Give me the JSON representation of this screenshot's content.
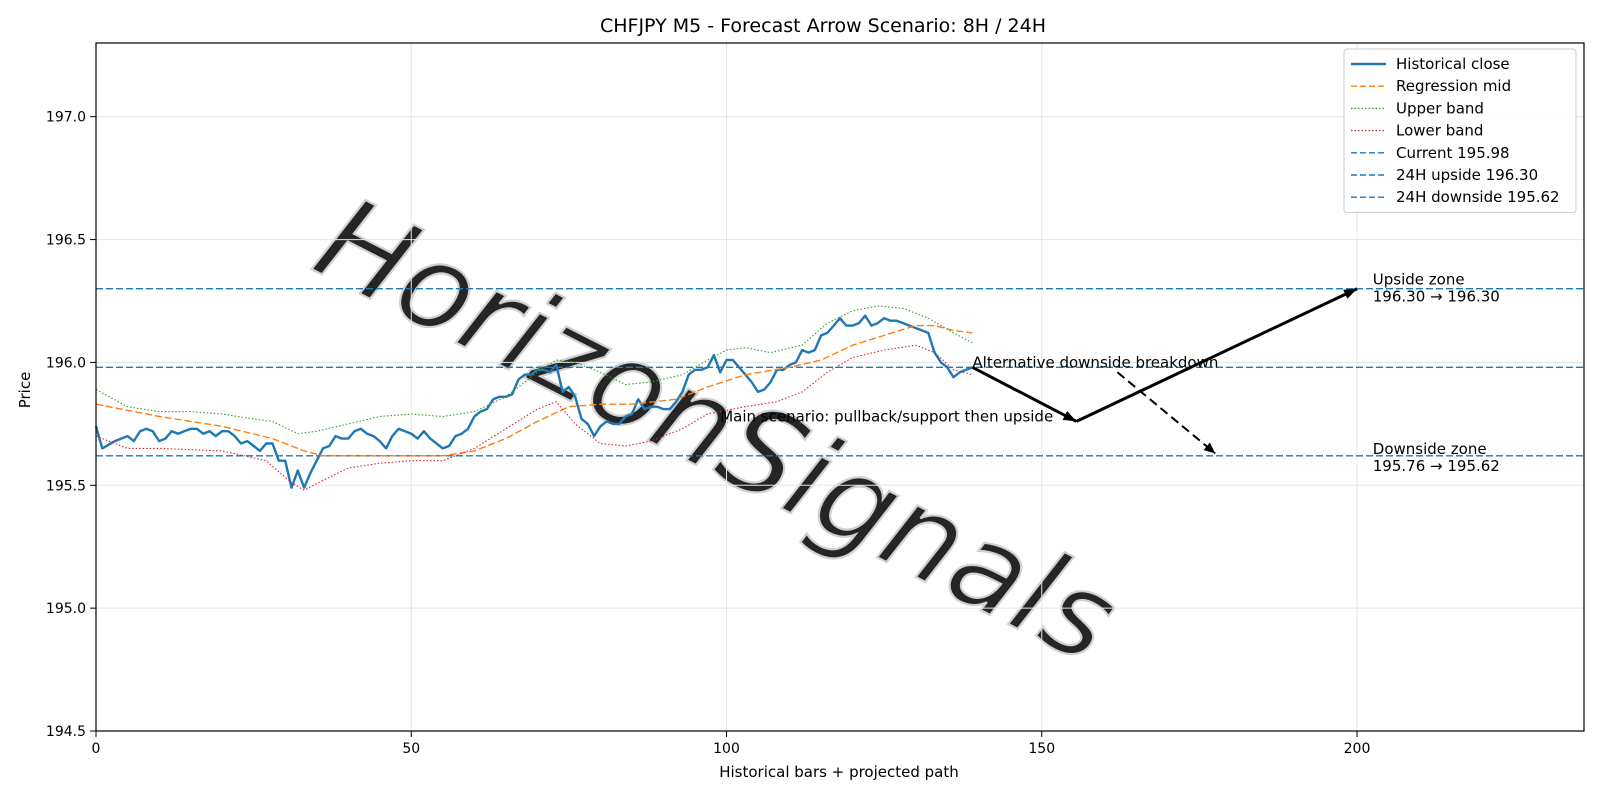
{
  "chart_data": {
    "type": "line",
    "title": "CHFJPY M5 - Forecast Arrow Scenario: 8H / 24H",
    "xlabel": "Historical bars + projected path",
    "ylabel": "Price",
    "xlim": [
      0,
      236
    ],
    "ylim": [
      194.5,
      197.3
    ],
    "xticks": [
      0,
      50,
      100,
      150,
      200
    ],
    "yticks": [
      194.5,
      195.0,
      195.5,
      196.0,
      196.5,
      197.0
    ],
    "xtick_labels": [
      "0",
      "50",
      "100",
      "150",
      "200"
    ],
    "ytick_labels": [
      "194.5",
      "195.0",
      "195.5",
      "196.0",
      "196.5",
      "197.0"
    ],
    "grid": true,
    "legend_position": "top-right",
    "colors": {
      "close": "#1f77b4",
      "mid": "#ff7f0e",
      "upper": "#2ca02c",
      "lower": "#d62728",
      "levels": "#1f77b4",
      "arrows": "#000000",
      "watermark": "#c8c8c8"
    },
    "series": [
      {
        "name": "Historical close",
        "style": "solid",
        "points": [
          [
            0,
            195.74
          ],
          [
            1,
            195.65
          ],
          [
            3,
            195.68
          ],
          [
            5,
            195.7
          ],
          [
            6,
            195.68
          ],
          [
            7,
            195.72
          ],
          [
            8,
            195.73
          ],
          [
            9,
            195.72
          ],
          [
            10,
            195.68
          ],
          [
            11,
            195.69
          ],
          [
            12,
            195.72
          ],
          [
            13,
            195.71
          ],
          [
            15,
            195.73
          ],
          [
            16,
            195.73
          ],
          [
            17,
            195.71
          ],
          [
            18,
            195.72
          ],
          [
            19,
            195.7
          ],
          [
            20,
            195.72
          ],
          [
            21,
            195.72
          ],
          [
            22,
            195.7
          ],
          [
            23,
            195.67
          ],
          [
            24,
            195.68
          ],
          [
            25,
            195.66
          ],
          [
            26,
            195.64
          ],
          [
            27,
            195.67
          ],
          [
            28,
            195.67
          ],
          [
            29,
            195.6
          ],
          [
            30,
            195.6
          ],
          [
            31,
            195.49
          ],
          [
            32,
            195.56
          ],
          [
            33,
            195.49
          ],
          [
            34,
            195.55
          ],
          [
            35,
            195.6
          ],
          [
            36,
            195.65
          ],
          [
            37,
            195.66
          ],
          [
            38,
            195.7
          ],
          [
            39,
            195.69
          ],
          [
            40,
            195.69
          ],
          [
            41,
            195.72
          ],
          [
            42,
            195.73
          ],
          [
            43,
            195.71
          ],
          [
            44,
            195.7
          ],
          [
            45,
            195.68
          ],
          [
            46,
            195.65
          ],
          [
            47,
            195.7
          ],
          [
            48,
            195.73
          ],
          [
            49,
            195.72
          ],
          [
            50,
            195.71
          ],
          [
            51,
            195.69
          ],
          [
            52,
            195.72
          ],
          [
            53,
            195.69
          ],
          [
            54,
            195.67
          ],
          [
            55,
            195.65
          ],
          [
            56,
            195.66
          ],
          [
            57,
            195.7
          ],
          [
            58,
            195.71
          ],
          [
            59,
            195.73
          ],
          [
            60,
            195.78
          ],
          [
            61,
            195.8
          ],
          [
            62,
            195.81
          ],
          [
            63,
            195.85
          ],
          [
            64,
            195.86
          ],
          [
            65,
            195.86
          ],
          [
            66,
            195.87
          ],
          [
            67,
            195.93
          ],
          [
            68,
            195.95
          ],
          [
            69,
            195.95
          ],
          [
            70,
            195.97
          ],
          [
            71,
            195.97
          ],
          [
            72,
            195.96
          ],
          [
            73,
            195.99
          ],
          [
            74,
            195.88
          ],
          [
            75,
            195.9
          ],
          [
            76,
            195.86
          ],
          [
            77,
            195.77
          ],
          [
            78,
            195.75
          ],
          [
            79,
            195.7
          ],
          [
            80,
            195.74
          ],
          [
            81,
            195.76
          ],
          [
            82,
            195.75
          ],
          [
            83,
            195.75
          ],
          [
            84,
            195.78
          ],
          [
            85,
            195.79
          ],
          [
            86,
            195.85
          ],
          [
            87,
            195.81
          ],
          [
            88,
            195.82
          ],
          [
            89,
            195.82
          ],
          [
            90,
            195.81
          ],
          [
            91,
            195.81
          ],
          [
            92,
            195.84
          ],
          [
            93,
            195.88
          ],
          [
            94,
            195.95
          ],
          [
            95,
            195.97
          ],
          [
            96,
            195.97
          ],
          [
            97,
            195.98
          ],
          [
            98,
            196.03
          ],
          [
            99,
            195.96
          ],
          [
            100,
            196.01
          ],
          [
            101,
            196.01
          ],
          [
            102,
            195.98
          ],
          [
            103,
            195.95
          ],
          [
            104,
            195.92
          ],
          [
            105,
            195.88
          ],
          [
            106,
            195.89
          ],
          [
            107,
            195.92
          ],
          [
            108,
            195.97
          ],
          [
            109,
            195.97
          ],
          [
            110,
            195.99
          ],
          [
            111,
            196.0
          ],
          [
            112,
            196.05
          ],
          [
            113,
            196.04
          ],
          [
            114,
            196.05
          ],
          [
            115,
            196.11
          ],
          [
            116,
            196.12
          ],
          [
            117,
            196.15
          ],
          [
            118,
            196.18
          ],
          [
            119,
            196.15
          ],
          [
            120,
            196.15
          ],
          [
            121,
            196.16
          ],
          [
            122,
            196.19
          ],
          [
            123,
            196.15
          ],
          [
            124,
            196.16
          ],
          [
            125,
            196.18
          ],
          [
            126,
            196.17
          ],
          [
            127,
            196.17
          ],
          [
            128,
            196.16
          ],
          [
            129,
            196.15
          ],
          [
            130,
            196.14
          ],
          [
            131,
            196.13
          ],
          [
            132,
            196.12
          ],
          [
            133,
            196.04
          ],
          [
            134,
            196.0
          ],
          [
            135,
            195.98
          ],
          [
            136,
            195.94
          ],
          [
            137,
            195.96
          ],
          [
            138,
            195.97
          ],
          [
            139,
            195.98
          ]
        ]
      },
      {
        "name": "Regression mid",
        "style": "dashed",
        "points": [
          [
            0,
            195.83
          ],
          [
            10,
            195.78
          ],
          [
            20,
            195.74
          ],
          [
            28,
            195.69
          ],
          [
            33,
            195.64
          ],
          [
            36,
            195.62
          ],
          [
            45,
            195.62
          ],
          [
            55,
            195.62
          ],
          [
            60,
            195.64
          ],
          [
            65,
            195.69
          ],
          [
            70,
            195.76
          ],
          [
            75,
            195.82
          ],
          [
            80,
            195.83
          ],
          [
            85,
            195.83
          ],
          [
            92,
            195.85
          ],
          [
            97,
            195.9
          ],
          [
            103,
            195.95
          ],
          [
            110,
            195.98
          ],
          [
            115,
            196.01
          ],
          [
            120,
            196.07
          ],
          [
            125,
            196.11
          ],
          [
            130,
            196.15
          ],
          [
            133,
            196.15
          ],
          [
            136,
            196.13
          ],
          [
            139,
            196.12
          ]
        ]
      },
      {
        "name": "Upper band",
        "style": "dotted",
        "points": [
          [
            0,
            195.89
          ],
          [
            5,
            195.82
          ],
          [
            10,
            195.8
          ],
          [
            15,
            195.8
          ],
          [
            20,
            195.79
          ],
          [
            25,
            195.77
          ],
          [
            28,
            195.76
          ],
          [
            32,
            195.71
          ],
          [
            35,
            195.72
          ],
          [
            40,
            195.75
          ],
          [
            45,
            195.78
          ],
          [
            50,
            195.79
          ],
          [
            55,
            195.78
          ],
          [
            60,
            195.8
          ],
          [
            65,
            195.86
          ],
          [
            70,
            195.96
          ],
          [
            73,
            196.01
          ],
          [
            76,
            196.0
          ],
          [
            80,
            195.96
          ],
          [
            84,
            195.91
          ],
          [
            88,
            195.92
          ],
          [
            93,
            195.95
          ],
          [
            97,
            196.01
          ],
          [
            100,
            196.05
          ],
          [
            103,
            196.06
          ],
          [
            107,
            196.04
          ],
          [
            112,
            196.07
          ],
          [
            116,
            196.16
          ],
          [
            120,
            196.21
          ],
          [
            124,
            196.23
          ],
          [
            128,
            196.22
          ],
          [
            132,
            196.18
          ],
          [
            136,
            196.12
          ],
          [
            139,
            196.08
          ]
        ]
      },
      {
        "name": "Lower band",
        "style": "dotted",
        "points": [
          [
            0,
            195.7
          ],
          [
            5,
            195.65
          ],
          [
            10,
            195.65
          ],
          [
            20,
            195.64
          ],
          [
            27,
            195.6
          ],
          [
            31,
            195.51
          ],
          [
            33,
            195.48
          ],
          [
            36,
            195.52
          ],
          [
            40,
            195.57
          ],
          [
            45,
            195.59
          ],
          [
            50,
            195.6
          ],
          [
            55,
            195.6
          ],
          [
            60,
            195.65
          ],
          [
            65,
            195.73
          ],
          [
            70,
            195.81
          ],
          [
            73,
            195.84
          ],
          [
            76,
            195.75
          ],
          [
            80,
            195.67
          ],
          [
            84,
            195.66
          ],
          [
            88,
            195.68
          ],
          [
            93,
            195.73
          ],
          [
            97,
            195.79
          ],
          [
            103,
            195.82
          ],
          [
            108,
            195.84
          ],
          [
            112,
            195.88
          ],
          [
            116,
            195.96
          ],
          [
            120,
            196.02
          ],
          [
            125,
            196.05
          ],
          [
            130,
            196.07
          ],
          [
            133,
            196.04
          ],
          [
            136,
            195.97
          ],
          [
            139,
            195.95
          ]
        ]
      }
    ],
    "levels": [
      {
        "name": "Current 195.98",
        "y": 195.98
      },
      {
        "name": "24H upside 196.30",
        "y": 196.3
      },
      {
        "name": "24H downside 195.62",
        "y": 195.62
      }
    ],
    "arrows": [
      {
        "from": [
          139,
          195.98
        ],
        "to": [
          155.5,
          195.76
        ],
        "style": "solid"
      },
      {
        "from": [
          155.5,
          195.76
        ],
        "to": [
          200,
          196.3
        ],
        "style": "solid"
      },
      {
        "from": [
          162,
          195.96
        ],
        "to": [
          177.5,
          195.63
        ],
        "style": "dashed"
      }
    ],
    "annotations": [
      {
        "text": "Alternative downside breakdown",
        "x": 139,
        "y": 196.0
      },
      {
        "text": "Main scenario: pullback/support then upside",
        "x": 99,
        "y": 195.78
      },
      {
        "lines": [
          "Upside zone",
          "196.30 → 196.30"
        ],
        "x": 202.5,
        "y": 196.305
      },
      {
        "lines": [
          "Downside zone",
          "195.76 → 195.62"
        ],
        "x": 202.5,
        "y": 195.615
      }
    ],
    "watermark": "HorizonSignals"
  }
}
